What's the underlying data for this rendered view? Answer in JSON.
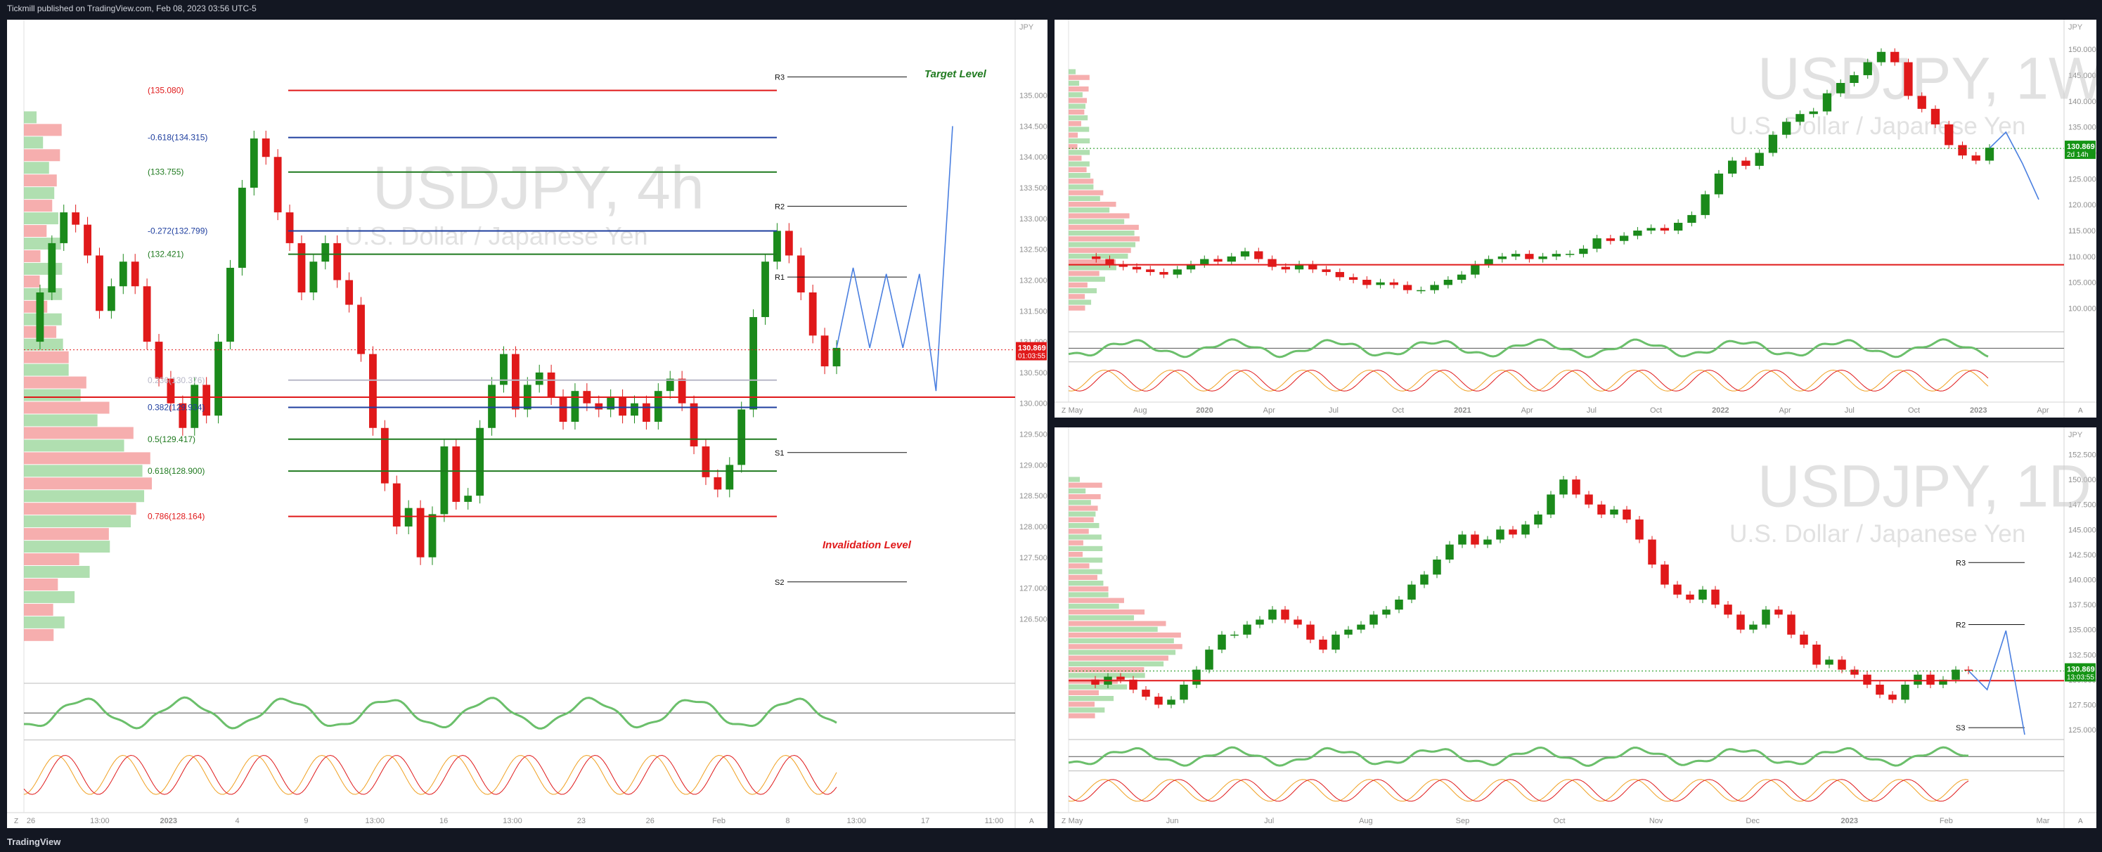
{
  "header": {
    "publisher": "Tickmill published on TradingView.com, Feb 08, 2023 03:56 UTC-5"
  },
  "footer": {
    "logo": "TradingView"
  },
  "colors": {
    "bull": "#1b8a1b",
    "bear": "#e0191a",
    "fib_green": "#1f7a1f",
    "fib_red": "#e0191a",
    "fib_blue": "#1f3f9f",
    "projection": "#4a7fe0",
    "price_label": "#e0191a",
    "price_label_green": "#159415",
    "watermark": "#c9c9c9",
    "pivot": "#111111",
    "purple": "#c01bd8",
    "orange": "#f0a020"
  },
  "chart_data": [
    {
      "id": "4h",
      "type": "line",
      "watermark": {
        "symbol": "USDJPY, 4h",
        "name": "U.S. Dollar / Japanese Yen"
      },
      "currency": "JPY",
      "ylim": [
        125.5,
        136.0
      ],
      "y_ticks": [
        "135.000",
        "134.500",
        "134.000",
        "133.500",
        "133.000",
        "132.500",
        "132.000",
        "131.500",
        "131.000",
        "130.500",
        "130.000",
        "129.500",
        "129.000",
        "128.500",
        "128.000",
        "127.500",
        "127.000",
        "126.500"
      ],
      "x_ticks": [
        "26",
        "13:00",
        "2023",
        "4",
        "9",
        "13:00",
        "16",
        "13:00",
        "23",
        "26",
        "Feb",
        "8",
        "13:00",
        "17",
        "11:00"
      ],
      "price_label": {
        "value": "130.869",
        "countdown": "01:03:55"
      },
      "close_approx": [
        131.0,
        131.8,
        132.6,
        133.1,
        132.9,
        132.4,
        131.5,
        131.9,
        132.3,
        131.9,
        131.0,
        130.4,
        130.0,
        129.6,
        130.3,
        129.8,
        131.0,
        132.2,
        133.5,
        134.3,
        134.0,
        133.1,
        132.6,
        131.8,
        132.3,
        132.6,
        132.0,
        131.6,
        130.8,
        129.6,
        128.7,
        128.0,
        128.3,
        127.5,
        128.2,
        129.3,
        128.4,
        128.5,
        129.6,
        130.3,
        130.8,
        129.9,
        130.3,
        130.5,
        130.1,
        129.7,
        130.2,
        130.0,
        129.9,
        130.1,
        129.8,
        130.0,
        129.7,
        130.2,
        130.4,
        130.0,
        129.3,
        128.8,
        128.6,
        129.0,
        129.9,
        131.4,
        132.3,
        132.8,
        132.4,
        131.8,
        131.1,
        130.6,
        130.9
      ],
      "fibonacci": [
        {
          "label": "(135.080)",
          "value": 135.08,
          "color": "red"
        },
        {
          "label": "-0.618(134.315)",
          "value": 134.315,
          "color": "blue"
        },
        {
          "label": "(133.755)",
          "value": 133.755,
          "color": "green"
        },
        {
          "label": "-0.272(132.799)",
          "value": 132.799,
          "color": "blue"
        },
        {
          "label": "(132.421)",
          "value": 132.421,
          "color": "green"
        },
        {
          "label": "0.236(130.376)",
          "value": 130.376,
          "color": "faint"
        },
        {
          "label": "0.382(129.934)",
          "value": 129.934,
          "color": "blue"
        },
        {
          "label": "0.5(129.417)",
          "value": 129.417,
          "color": "green"
        },
        {
          "label": "0.618(128.900)",
          "value": 128.9,
          "color": "green"
        },
        {
          "label": "0.786(128.164)",
          "value": 128.164,
          "color": "red"
        }
      ],
      "pivots": [
        {
          "label": "R3",
          "value": 135.3
        },
        {
          "label": "R2",
          "value": 133.2
        },
        {
          "label": "R1",
          "value": 132.05
        },
        {
          "label": "S1",
          "value": 129.2
        },
        {
          "label": "S2",
          "value": 127.1
        }
      ],
      "annotations": [
        {
          "text": "Target Level",
          "color": "green"
        },
        {
          "text": "Invalidation Level",
          "color": "red"
        }
      ],
      "projection_path": [
        [
          130.9
        ],
        [
          132.2
        ],
        [
          130.9
        ],
        [
          132.1
        ],
        [
          130.9
        ],
        [
          132.1
        ],
        [
          130.2
        ],
        [
          134.5
        ]
      ]
    },
    {
      "id": "1w",
      "type": "line",
      "watermark": {
        "symbol": "USDJPY, 1W",
        "name": "U.S. Dollar / Japanese Yen"
      },
      "currency": "JPY",
      "ylim": [
        96.0,
        153.0
      ],
      "y_ticks": [
        "150.000",
        "145.000",
        "140.000",
        "135.000",
        "130.000",
        "125.000",
        "120.000",
        "115.000",
        "110.000",
        "105.000",
        "100.000"
      ],
      "x_ticks": [
        "May",
        "Aug",
        "2020",
        "Apr",
        "Jul",
        "Oct",
        "2021",
        "Apr",
        "Jul",
        "Oct",
        "2022",
        "Apr",
        "Jul",
        "Oct",
        "2023",
        "Apr"
      ],
      "price_label": {
        "value": "130.869",
        "countdown": "2d 14h"
      },
      "close_approx": [
        110.0,
        109.5,
        108.5,
        108.0,
        107.5,
        107.0,
        106.5,
        107.5,
        108.5,
        109.5,
        109.0,
        110.0,
        111.0,
        109.5,
        108.0,
        107.5,
        108.5,
        107.5,
        107.0,
        106.0,
        105.5,
        104.5,
        105.0,
        104.5,
        103.5,
        103.5,
        104.5,
        105.5,
        106.5,
        108.5,
        109.5,
        110.0,
        110.5,
        109.5,
        110.0,
        110.5,
        110.5,
        111.5,
        113.5,
        113.0,
        114.0,
        115.0,
        115.5,
        115.0,
        116.5,
        118.0,
        122.0,
        126.0,
        128.5,
        127.5,
        130.0,
        133.5,
        136.0,
        137.5,
        138.0,
        141.5,
        143.5,
        145.0,
        147.5,
        149.5,
        147.5,
        141.0,
        138.5,
        135.5,
        131.5,
        129.5,
        128.5,
        131.0
      ],
      "projection_path": [
        [
          130.9
        ],
        [
          134.0
        ],
        [
          128.0
        ],
        [
          121.0
        ]
      ]
    },
    {
      "id": "1d",
      "type": "line",
      "watermark": {
        "symbol": "USDJPY, 1D",
        "name": "U.S. Dollar / Japanese Yen"
      },
      "currency": "JPY",
      "ylim": [
        124.3,
        153.8
      ],
      "y_ticks": [
        "152.500",
        "150.000",
        "147.500",
        "145.000",
        "142.500",
        "140.000",
        "137.500",
        "135.000",
        "132.500",
        "130.000",
        "127.500",
        "125.000"
      ],
      "x_ticks": [
        "May",
        "Jun",
        "Jul",
        "Aug",
        "Sep",
        "Oct",
        "Nov",
        "Dec",
        "2023",
        "Feb",
        "Mar"
      ],
      "price_label": {
        "value": "130.869",
        "countdown": "13:03:55"
      },
      "close_approx": [
        130.0,
        129.5,
        130.3,
        130.0,
        129.0,
        128.3,
        127.5,
        128.0,
        129.5,
        131.0,
        133.0,
        134.5,
        134.5,
        135.5,
        136.0,
        137.0,
        136.0,
        135.5,
        134.0,
        133.0,
        134.5,
        135.0,
        135.5,
        136.5,
        137.0,
        138.0,
        139.5,
        140.5,
        142.0,
        143.5,
        144.5,
        143.5,
        144.0,
        145.0,
        144.5,
        145.5,
        146.5,
        148.5,
        150.0,
        148.5,
        147.5,
        146.5,
        147.0,
        146.0,
        144.0,
        141.5,
        139.5,
        138.5,
        138.0,
        139.0,
        137.5,
        136.5,
        135.0,
        135.5,
        137.0,
        136.5,
        134.5,
        133.5,
        131.5,
        132.0,
        131.0,
        130.5,
        129.5,
        128.5,
        128.0,
        129.5,
        130.5,
        129.5,
        130.0,
        131.0,
        130.9
      ],
      "pivots": [
        {
          "label": "R3",
          "value": 141.7
        },
        {
          "label": "R2",
          "value": 135.5
        },
        {
          "label": "S3",
          "value": 125.2
        }
      ],
      "projection_path": [
        [
          130.9
        ],
        [
          129.0
        ],
        [
          134.9
        ],
        [
          124.5
        ]
      ]
    }
  ]
}
